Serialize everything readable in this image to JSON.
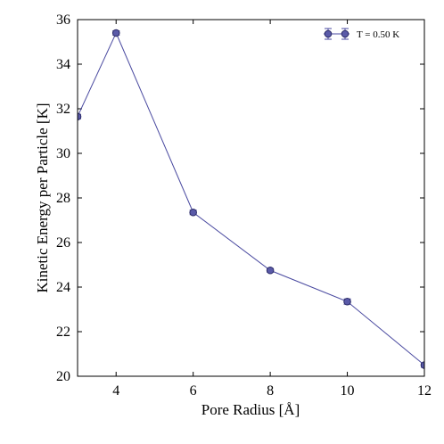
{
  "chart_data": {
    "type": "line",
    "title": "",
    "xlabel": "Pore Radius [Å]",
    "ylabel": "Kinetic Energy per Particle [K]",
    "xlim": [
      3,
      12
    ],
    "ylim": [
      20,
      36
    ],
    "xticks": [
      "4",
      "6",
      "8",
      "10",
      "12"
    ],
    "yticks": [
      "20",
      "22",
      "24",
      "26",
      "28",
      "30",
      "32",
      "34",
      "36"
    ],
    "grid": false,
    "legend_position": "top-right",
    "series": [
      {
        "name": "T = 0.50 K",
        "color": "#4a4aa0",
        "x": [
          3,
          4,
          6,
          8,
          10,
          12
        ],
        "y": [
          31.65,
          35.4,
          27.35,
          24.75,
          23.35,
          20.5
        ],
        "yerr": [
          0.1,
          0.1,
          0.1,
          0.08,
          0.12,
          0.1
        ]
      }
    ]
  }
}
